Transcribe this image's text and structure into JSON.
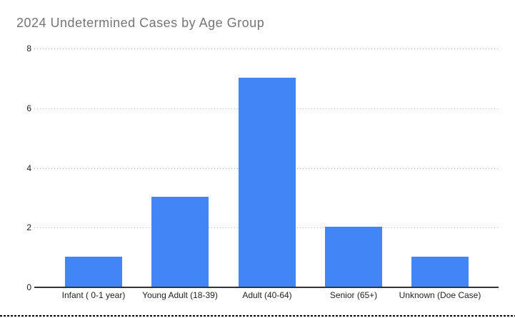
{
  "chart_data": {
    "type": "bar",
    "title": "2024 Undetermined Cases by Age Group",
    "categories": [
      "Infant ( 0-1 year)",
      "Young Adult (18-39)",
      "Adult (40-64)",
      "Senior (65+)",
      "Unknown (Doe Case)"
    ],
    "values": [
      1,
      3,
      7,
      2,
      1
    ],
    "series_name": "Undetermined Cases",
    "xlabel": "",
    "ylabel": "",
    "yticks": [
      0,
      2,
      4,
      6,
      8
    ],
    "ylim": [
      0,
      8
    ],
    "grid": "horizontal-dotted",
    "legend": "none",
    "colors": {
      "bar": "#4285f4",
      "title": "#757575",
      "axis_labels": "#222222",
      "gridline": "#b7b7b7",
      "axis_line": "#333333",
      "background": "#ffffff",
      "bottom_border": "#000000"
    }
  }
}
